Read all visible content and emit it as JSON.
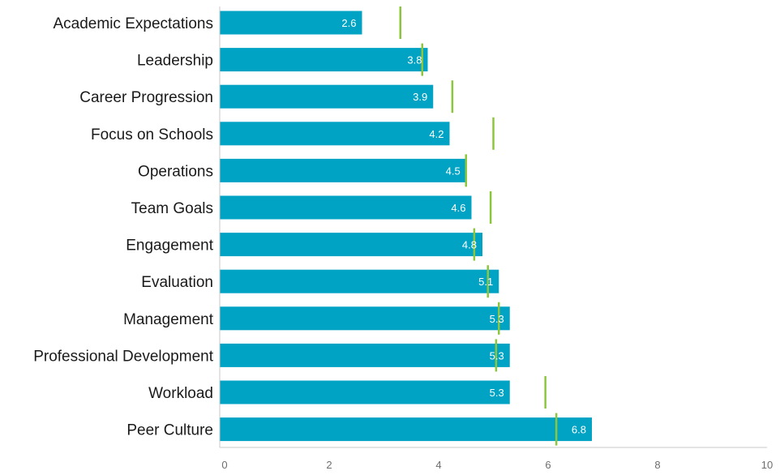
{
  "chart_data": {
    "type": "bar",
    "orientation": "horizontal",
    "categories": [
      "Academic Expectations",
      "Leadership",
      "Career Progression",
      "Focus on Schools",
      "Operations",
      "Team Goals",
      "Engagement",
      "Evaluation",
      "Management",
      "Professional Development",
      "Workload",
      "Peer Culture"
    ],
    "values": [
      2.6,
      3.8,
      3.9,
      4.2,
      4.5,
      4.6,
      4.8,
      5.1,
      5.3,
      5.3,
      5.3,
      6.8
    ],
    "value_labels": [
      "2.6",
      "3.8",
      "3.9",
      "4.2",
      "4.5",
      "4.6",
      "4.8",
      "5.1",
      "5.3",
      "5.3",
      "5.3",
      "6.8"
    ],
    "markers": [
      3.3,
      3.7,
      4.25,
      5.0,
      4.5,
      4.95,
      4.65,
      4.9,
      5.1,
      5.05,
      5.95,
      6.15
    ],
    "xlim": [
      0,
      10
    ],
    "xticks": [
      0,
      2,
      4,
      6,
      8,
      10
    ],
    "xtick_labels": [
      "0",
      "2",
      "4",
      "6",
      "8",
      "10"
    ],
    "title": "",
    "xlabel": "",
    "ylabel": "",
    "grid": false,
    "legend": "none",
    "colors": {
      "bar": "#00a3c4",
      "marker": "#8cc63f",
      "axis": "#c8c8c8",
      "value_text": "#ffffff"
    }
  }
}
